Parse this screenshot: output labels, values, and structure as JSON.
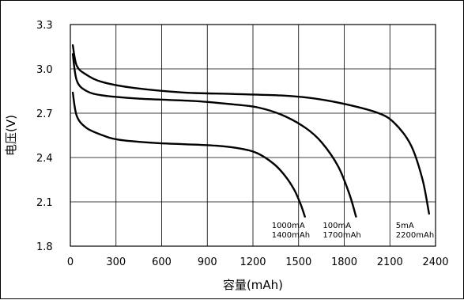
{
  "chart_data": {
    "type": "line",
    "xlabel": "容量(mAh)",
    "ylabel": "电压(V)",
    "xlim": [
      0,
      2250
    ],
    "ylim": [
      1.8,
      3.3
    ],
    "x_ticks": [
      "0",
      "300",
      "600",
      "900",
      "1200",
      "1500",
      "1800",
      "2100",
      "2400"
    ],
    "y_ticks": [
      "3.3",
      "3.0",
      "2.7",
      "2.4",
      "2.1",
      "1.8"
    ],
    "grid": true,
    "series": [
      {
        "label_line1": "1000mA",
        "label_line2": "1400mAh",
        "x": [
          15,
          40,
          100,
          200,
          300,
          500,
          700,
          900,
          1050,
          1150,
          1250,
          1320,
          1380,
          1420,
          1445
        ],
        "y": [
          2.84,
          2.68,
          2.6,
          2.55,
          2.52,
          2.5,
          2.49,
          2.48,
          2.46,
          2.43,
          2.36,
          2.28,
          2.18,
          2.08,
          2.0
        ]
      },
      {
        "label_line1": "100mA",
        "label_line2": "1700mAh",
        "x": [
          15,
          40,
          100,
          200,
          400,
          600,
          800,
          1000,
          1150,
          1300,
          1450,
          1550,
          1650,
          1720,
          1760
        ],
        "y": [
          3.1,
          2.92,
          2.85,
          2.82,
          2.8,
          2.79,
          2.78,
          2.76,
          2.74,
          2.69,
          2.6,
          2.5,
          2.34,
          2.15,
          2.0
        ]
      },
      {
        "label_line1": "5mA",
        "label_line2": "2200mAh",
        "x": [
          15,
          40,
          100,
          200,
          400,
          700,
          1000,
          1300,
          1500,
          1700,
          1900,
          2000,
          2100,
          2170,
          2210
        ],
        "y": [
          3.16,
          3.02,
          2.96,
          2.91,
          2.87,
          2.84,
          2.83,
          2.82,
          2.8,
          2.76,
          2.7,
          2.63,
          2.48,
          2.25,
          2.02
        ]
      }
    ]
  }
}
